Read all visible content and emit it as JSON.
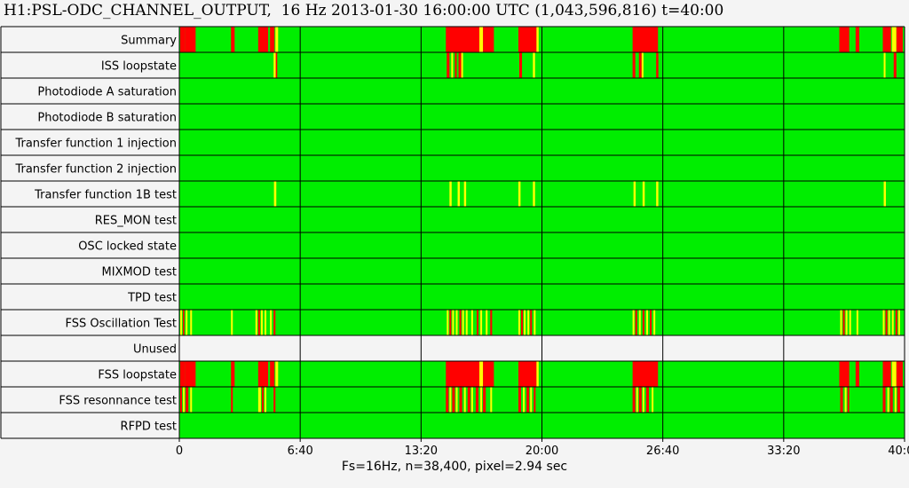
{
  "title": "H1:PSL-ODC_CHANNEL_OUTPUT,  16 Hz 2013-01-30 16:00:00 UTC (1,043,596,816) t=40:00",
  "footer": "Fs=16Hz, n=38,400, pixel=2.94 sec",
  "colors": {
    "ok": "#00ee00",
    "fail": "#ff0000",
    "warn": "#ffff00",
    "unused": "#f4f4f4",
    "grid": "#000000"
  },
  "chart_data": {
    "type": "heatmap",
    "x_unit": "minutes",
    "xlim": [
      0,
      40
    ],
    "x_ticks": [
      "0",
      "6:40",
      "13:20",
      "20:00",
      "26:40",
      "33:20",
      "40:00"
    ],
    "rows": [
      {
        "label": "Summary",
        "base": "ok",
        "events": [
          {
            "start": 0.05,
            "end": 0.3,
            "state": "fail"
          },
          {
            "start": 0.3,
            "end": 0.9,
            "state": "fail"
          },
          {
            "start": 2.85,
            "end": 3.05,
            "state": "fail"
          },
          {
            "start": 4.35,
            "end": 4.9,
            "state": "fail"
          },
          {
            "start": 5.0,
            "end": 5.25,
            "state": "fail"
          },
          {
            "start": 5.3,
            "end": 5.45,
            "state": "warn"
          },
          {
            "start": 14.7,
            "end": 16.55,
            "state": "fail"
          },
          {
            "start": 16.55,
            "end": 16.75,
            "state": "warn"
          },
          {
            "start": 16.75,
            "end": 17.35,
            "state": "fail"
          },
          {
            "start": 18.7,
            "end": 19.7,
            "state": "fail"
          },
          {
            "start": 19.7,
            "end": 19.82,
            "state": "warn"
          },
          {
            "start": 25.0,
            "end": 26.4,
            "state": "fail"
          },
          {
            "start": 36.4,
            "end": 36.95,
            "state": "fail"
          },
          {
            "start": 37.3,
            "end": 37.5,
            "state": "fail"
          },
          {
            "start": 38.8,
            "end": 39.25,
            "state": "fail"
          },
          {
            "start": 39.3,
            "end": 39.55,
            "state": "warn"
          },
          {
            "start": 39.55,
            "end": 39.9,
            "state": "fail"
          }
        ]
      },
      {
        "label": "ISS loopstate",
        "base": "ok",
        "events": [
          {
            "start": 5.2,
            "end": 5.32,
            "state": "warn"
          },
          {
            "start": 5.32,
            "end": 5.4,
            "state": "fail"
          },
          {
            "start": 14.75,
            "end": 14.9,
            "state": "fail"
          },
          {
            "start": 15.0,
            "end": 15.1,
            "state": "warn"
          },
          {
            "start": 15.2,
            "end": 15.3,
            "state": "fail"
          },
          {
            "start": 15.4,
            "end": 15.55,
            "state": "fail"
          },
          {
            "start": 15.55,
            "end": 15.65,
            "state": "warn"
          },
          {
            "start": 18.75,
            "end": 18.9,
            "state": "fail"
          },
          {
            "start": 19.5,
            "end": 19.62,
            "state": "warn"
          },
          {
            "start": 25.0,
            "end": 25.15,
            "state": "fail"
          },
          {
            "start": 25.35,
            "end": 25.5,
            "state": "fail"
          },
          {
            "start": 25.5,
            "end": 25.6,
            "state": "warn"
          },
          {
            "start": 26.3,
            "end": 26.42,
            "state": "fail"
          },
          {
            "start": 38.85,
            "end": 38.95,
            "state": "warn"
          },
          {
            "start": 39.4,
            "end": 39.55,
            "state": "fail"
          }
        ]
      },
      {
        "label": "Photodiode A saturation",
        "base": "ok",
        "events": []
      },
      {
        "label": "Photodiode B saturation",
        "base": "ok",
        "events": []
      },
      {
        "label": "Transfer function 1 injection",
        "base": "ok",
        "events": []
      },
      {
        "label": "Transfer function 2 injection",
        "base": "ok",
        "events": []
      },
      {
        "label": "Transfer function 1B test",
        "base": "ok",
        "events": [
          {
            "start": 5.22,
            "end": 5.35,
            "state": "warn"
          },
          {
            "start": 14.9,
            "end": 15.02,
            "state": "warn"
          },
          {
            "start": 15.35,
            "end": 15.47,
            "state": "warn"
          },
          {
            "start": 15.7,
            "end": 15.82,
            "state": "warn"
          },
          {
            "start": 18.7,
            "end": 18.82,
            "state": "warn"
          },
          {
            "start": 19.5,
            "end": 19.62,
            "state": "warn"
          },
          {
            "start": 25.05,
            "end": 25.17,
            "state": "warn"
          },
          {
            "start": 25.55,
            "end": 25.67,
            "state": "warn"
          },
          {
            "start": 26.3,
            "end": 26.42,
            "state": "warn"
          },
          {
            "start": 38.85,
            "end": 38.97,
            "state": "warn"
          }
        ]
      },
      {
        "label": "RES_MON test",
        "base": "ok",
        "events": []
      },
      {
        "label": "OSC locked state",
        "base": "ok",
        "events": []
      },
      {
        "label": "MIXMOD test",
        "base": "ok",
        "events": []
      },
      {
        "label": "TPD test",
        "base": "ok",
        "events": []
      },
      {
        "label": "FSS Oscillation Test",
        "base": "ok",
        "events": [
          {
            "start": 0.05,
            "end": 0.15,
            "state": "warn"
          },
          {
            "start": 0.2,
            "end": 0.28,
            "state": "fail"
          },
          {
            "start": 0.35,
            "end": 0.45,
            "state": "warn"
          },
          {
            "start": 0.6,
            "end": 0.7,
            "state": "warn"
          },
          {
            "start": 2.85,
            "end": 2.95,
            "state": "warn"
          },
          {
            "start": 4.2,
            "end": 4.3,
            "state": "warn"
          },
          {
            "start": 4.35,
            "end": 4.45,
            "state": "fail"
          },
          {
            "start": 4.5,
            "end": 4.6,
            "state": "warn"
          },
          {
            "start": 4.7,
            "end": 4.8,
            "state": "warn"
          },
          {
            "start": 5.0,
            "end": 5.1,
            "state": "warn"
          },
          {
            "start": 5.2,
            "end": 5.3,
            "state": "fail"
          },
          {
            "start": 14.75,
            "end": 14.85,
            "state": "warn"
          },
          {
            "start": 14.9,
            "end": 15.0,
            "state": "fail"
          },
          {
            "start": 15.05,
            "end": 15.15,
            "state": "warn"
          },
          {
            "start": 15.25,
            "end": 15.35,
            "state": "warn"
          },
          {
            "start": 15.45,
            "end": 15.55,
            "state": "fail"
          },
          {
            "start": 15.6,
            "end": 15.7,
            "state": "warn"
          },
          {
            "start": 15.8,
            "end": 15.9,
            "state": "warn"
          },
          {
            "start": 16.1,
            "end": 16.2,
            "state": "warn"
          },
          {
            "start": 16.4,
            "end": 16.5,
            "state": "fail"
          },
          {
            "start": 16.6,
            "end": 16.7,
            "state": "warn"
          },
          {
            "start": 16.9,
            "end": 17.0,
            "state": "warn"
          },
          {
            "start": 17.15,
            "end": 17.25,
            "state": "fail"
          },
          {
            "start": 18.7,
            "end": 18.8,
            "state": "warn"
          },
          {
            "start": 18.85,
            "end": 18.95,
            "state": "fail"
          },
          {
            "start": 19.0,
            "end": 19.1,
            "state": "warn"
          },
          {
            "start": 19.2,
            "end": 19.3,
            "state": "warn"
          },
          {
            "start": 19.35,
            "end": 19.45,
            "state": "fail"
          },
          {
            "start": 19.55,
            "end": 19.65,
            "state": "warn"
          },
          {
            "start": 25.0,
            "end": 25.1,
            "state": "warn"
          },
          {
            "start": 25.15,
            "end": 25.25,
            "state": "fail"
          },
          {
            "start": 25.35,
            "end": 25.45,
            "state": "warn"
          },
          {
            "start": 25.55,
            "end": 25.65,
            "state": "fail"
          },
          {
            "start": 25.75,
            "end": 25.85,
            "state": "warn"
          },
          {
            "start": 25.95,
            "end": 26.05,
            "state": "fail"
          },
          {
            "start": 26.15,
            "end": 26.25,
            "state": "warn"
          },
          {
            "start": 36.45,
            "end": 36.55,
            "state": "warn"
          },
          {
            "start": 36.6,
            "end": 36.7,
            "state": "fail"
          },
          {
            "start": 36.75,
            "end": 36.85,
            "state": "warn"
          },
          {
            "start": 36.95,
            "end": 37.05,
            "state": "warn"
          },
          {
            "start": 37.35,
            "end": 37.45,
            "state": "warn"
          },
          {
            "start": 38.8,
            "end": 38.9,
            "state": "warn"
          },
          {
            "start": 38.95,
            "end": 39.05,
            "state": "fail"
          },
          {
            "start": 39.1,
            "end": 39.2,
            "state": "warn"
          },
          {
            "start": 39.3,
            "end": 39.4,
            "state": "warn"
          },
          {
            "start": 39.5,
            "end": 39.6,
            "state": "fail"
          },
          {
            "start": 39.65,
            "end": 39.75,
            "state": "warn"
          }
        ]
      },
      {
        "label": "Unused",
        "base": "unused",
        "events": []
      },
      {
        "label": "FSS loopstate",
        "base": "ok",
        "events": [
          {
            "start": 0.05,
            "end": 0.3,
            "state": "fail"
          },
          {
            "start": 0.3,
            "end": 0.9,
            "state": "fail"
          },
          {
            "start": 2.85,
            "end": 3.05,
            "state": "fail"
          },
          {
            "start": 4.35,
            "end": 4.9,
            "state": "fail"
          },
          {
            "start": 5.0,
            "end": 5.25,
            "state": "fail"
          },
          {
            "start": 5.3,
            "end": 5.45,
            "state": "warn"
          },
          {
            "start": 14.7,
            "end": 16.55,
            "state": "fail"
          },
          {
            "start": 16.55,
            "end": 16.75,
            "state": "warn"
          },
          {
            "start": 16.75,
            "end": 17.35,
            "state": "fail"
          },
          {
            "start": 18.7,
            "end": 19.7,
            "state": "fail"
          },
          {
            "start": 19.7,
            "end": 19.82,
            "state": "warn"
          },
          {
            "start": 25.0,
            "end": 26.4,
            "state": "fail"
          },
          {
            "start": 36.4,
            "end": 36.95,
            "state": "fail"
          },
          {
            "start": 37.3,
            "end": 37.5,
            "state": "fail"
          },
          {
            "start": 38.8,
            "end": 39.25,
            "state": "fail"
          },
          {
            "start": 39.3,
            "end": 39.55,
            "state": "warn"
          },
          {
            "start": 39.55,
            "end": 39.9,
            "state": "fail"
          }
        ]
      },
      {
        "label": "FSS resonnance test",
        "base": "ok",
        "events": [
          {
            "start": 0.05,
            "end": 0.15,
            "state": "fail"
          },
          {
            "start": 0.2,
            "end": 0.3,
            "state": "warn"
          },
          {
            "start": 0.35,
            "end": 0.5,
            "state": "fail"
          },
          {
            "start": 0.6,
            "end": 0.7,
            "state": "warn"
          },
          {
            "start": 2.85,
            "end": 2.95,
            "state": "fail"
          },
          {
            "start": 4.35,
            "end": 4.5,
            "state": "warn"
          },
          {
            "start": 4.55,
            "end": 4.65,
            "state": "fail"
          },
          {
            "start": 4.7,
            "end": 4.8,
            "state": "warn"
          },
          {
            "start": 5.2,
            "end": 5.3,
            "state": "fail"
          },
          {
            "start": 14.7,
            "end": 14.85,
            "state": "fail"
          },
          {
            "start": 14.9,
            "end": 15.0,
            "state": "warn"
          },
          {
            "start": 15.05,
            "end": 15.2,
            "state": "fail"
          },
          {
            "start": 15.25,
            "end": 15.35,
            "state": "warn"
          },
          {
            "start": 15.45,
            "end": 15.6,
            "state": "fail"
          },
          {
            "start": 15.7,
            "end": 15.8,
            "state": "warn"
          },
          {
            "start": 15.9,
            "end": 16.05,
            "state": "fail"
          },
          {
            "start": 16.1,
            "end": 16.2,
            "state": "warn"
          },
          {
            "start": 16.35,
            "end": 16.5,
            "state": "fail"
          },
          {
            "start": 16.6,
            "end": 16.7,
            "state": "warn"
          },
          {
            "start": 16.75,
            "end": 16.9,
            "state": "fail"
          },
          {
            "start": 17.15,
            "end": 17.25,
            "state": "warn"
          },
          {
            "start": 18.7,
            "end": 18.85,
            "state": "fail"
          },
          {
            "start": 18.95,
            "end": 19.05,
            "state": "warn"
          },
          {
            "start": 19.15,
            "end": 19.3,
            "state": "fail"
          },
          {
            "start": 19.35,
            "end": 19.45,
            "state": "warn"
          },
          {
            "start": 19.55,
            "end": 19.65,
            "state": "fail"
          },
          {
            "start": 25.0,
            "end": 25.15,
            "state": "fail"
          },
          {
            "start": 25.2,
            "end": 25.3,
            "state": "warn"
          },
          {
            "start": 25.35,
            "end": 25.5,
            "state": "fail"
          },
          {
            "start": 25.55,
            "end": 25.65,
            "state": "warn"
          },
          {
            "start": 25.75,
            "end": 25.9,
            "state": "fail"
          },
          {
            "start": 26.05,
            "end": 26.15,
            "state": "warn"
          },
          {
            "start": 36.45,
            "end": 36.6,
            "state": "fail"
          },
          {
            "start": 36.7,
            "end": 36.8,
            "state": "warn"
          },
          {
            "start": 36.85,
            "end": 36.95,
            "state": "fail"
          },
          {
            "start": 38.8,
            "end": 38.95,
            "state": "fail"
          },
          {
            "start": 39.05,
            "end": 39.15,
            "state": "warn"
          },
          {
            "start": 39.2,
            "end": 39.35,
            "state": "fail"
          },
          {
            "start": 39.45,
            "end": 39.55,
            "state": "warn"
          },
          {
            "start": 39.6,
            "end": 39.75,
            "state": "fail"
          }
        ]
      },
      {
        "label": "RFPD test",
        "base": "ok",
        "events": []
      }
    ]
  }
}
